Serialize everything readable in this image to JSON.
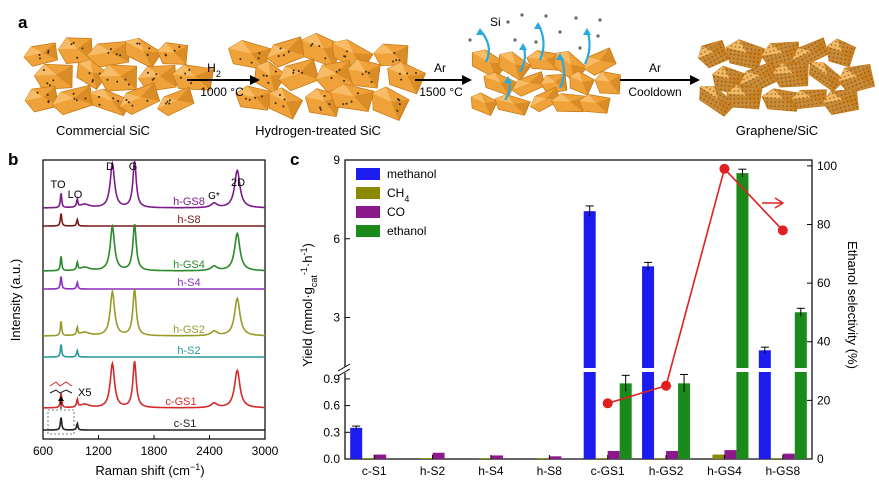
{
  "panel_a": {
    "letter": "a",
    "stage_labels": [
      "Commercial SiC",
      "Hydrogen-treated SiC",
      "Graphene/SiC"
    ],
    "si_label": "Si",
    "arrows": [
      {
        "gas": "H",
        "gas_sub": "2",
        "temp": "1000 °C"
      },
      {
        "gas": "Ar",
        "gas_sub": "",
        "temp": "1500 °C"
      },
      {
        "gas": "Ar",
        "gas_sub": "",
        "temp": "Cooldown"
      }
    ],
    "colors": {
      "crystal": "#f0a23a",
      "crystal_dark": "#c97a15",
      "crystal_light": "#f7bf6a",
      "si_arrow": "#29a9e0"
    }
  },
  "panel_b": {
    "letter": "b",
    "xlabel_main": "Raman shift (cm",
    "xlabel_sup": "−1",
    "xlabel_end": ")",
    "ylabel": "Intensity (a.u.)",
    "x_ticks": [
      "600",
      "1200",
      "1800",
      "2400",
      "3000"
    ],
    "xlim": [
      600,
      3000
    ],
    "peak_labels": [
      "TO",
      "LO",
      "D",
      "G",
      "G*",
      "2D"
    ],
    "inset_label": "X5",
    "spectra": [
      {
        "name": "h-GS8",
        "color": "#7b1c8a",
        "graphene": true
      },
      {
        "name": "h-S8",
        "color": "#7a1a1a",
        "graphene": false
      },
      {
        "name": "h-GS4",
        "color": "#2a8a2a",
        "graphene": true
      },
      {
        "name": "h-S4",
        "color": "#8a2fc0",
        "graphene": false
      },
      {
        "name": "h-GS2",
        "color": "#9a9a2a",
        "graphene": true
      },
      {
        "name": "h-S2",
        "color": "#2a9a9a",
        "graphene": false
      },
      {
        "name": "c-GS1",
        "color": "#d42a2a",
        "graphene": true
      },
      {
        "name": "c-S1",
        "color": "#222222",
        "graphene": false
      }
    ]
  },
  "chart_data": {
    "type": "bar",
    "letter": "c",
    "categories": [
      "c-S1",
      "h-S2",
      "h-S4",
      "h-S8",
      "c-GS1",
      "h-GS2",
      "h-GS4",
      "h-GS8"
    ],
    "series": [
      {
        "name": "methanol",
        "color": "#1c1cf0",
        "values": [
          0.35,
          0,
          0,
          0,
          7.05,
          4.95,
          0,
          1.75
        ]
      },
      {
        "name": "CH",
        "name_sub": "4",
        "color": "#8a8a00",
        "values": [
          0.01,
          0.01,
          0.01,
          0.01,
          0.01,
          0.01,
          0.05,
          0.01
        ]
      },
      {
        "name": "CO",
        "color": "#8a1a8a",
        "values": [
          0.05,
          0.07,
          0.04,
          0.03,
          0.09,
          0.09,
          0.1,
          0.06
        ]
      },
      {
        "name": "ethanol",
        "color": "#1a8a1a",
        "values": [
          0,
          0,
          0,
          0,
          0.85,
          0.85,
          8.5,
          3.2
        ]
      }
    ],
    "error_bars": {
      "methanol": [
        0.02,
        0,
        0,
        0,
        0.2,
        0.15,
        0,
        0.12
      ],
      "ethanol": [
        0,
        0,
        0,
        0,
        0.09,
        0.1,
        0.15,
        0.15
      ]
    },
    "selectivity": {
      "categories": [
        "c-GS1",
        "h-GS2",
        "h-GS4",
        "h-GS8"
      ],
      "values": [
        19,
        25,
        99,
        78
      ],
      "color": "#e02020"
    },
    "ylabel_left": "Yield (mmol·g",
    "ylabel_left_sub": "cat",
    "ylabel_left_sup": "-1",
    "ylabel_left_end": "·h",
    "ylabel_left_sup2": "-1",
    "ylabel_left_close": ")",
    "ylabel_right": "Ethanol selectivity (%)",
    "y_ticks_low": [
      "0.0",
      "0.3",
      "0.6",
      "0.9"
    ],
    "y_ticks_high": [
      "3",
      "6",
      "9"
    ],
    "y_ticks_right": [
      "0",
      "20",
      "40",
      "60",
      "80",
      "100"
    ],
    "ylim_low": [
      0,
      1.0
    ],
    "ylim_high": [
      1.0,
      9.0
    ],
    "ylim_right": [
      0,
      102
    ],
    "legend_position": "top-left"
  }
}
